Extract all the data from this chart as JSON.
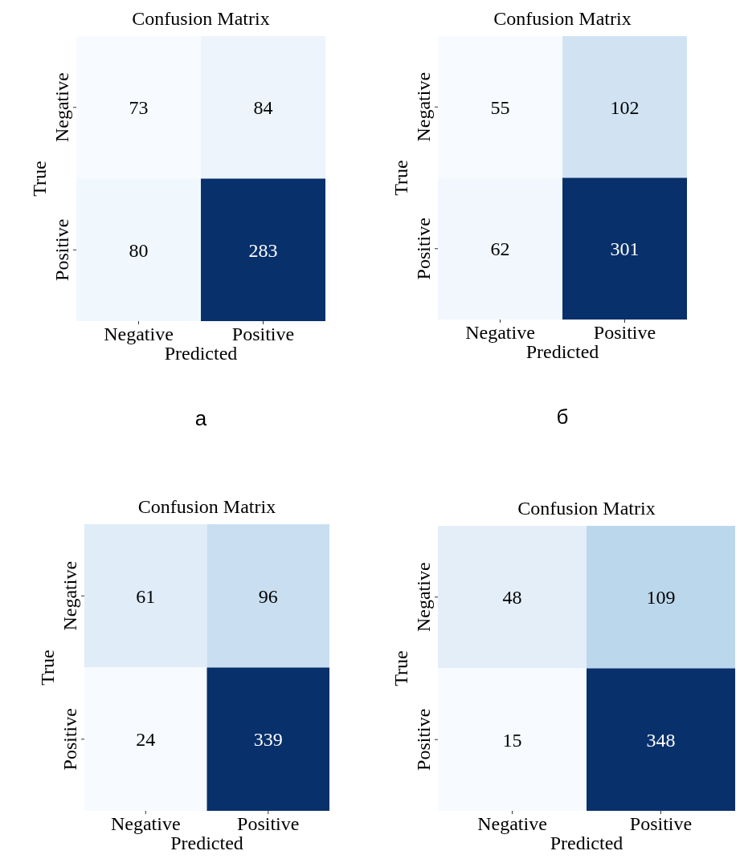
{
  "chart_data": [
    {
      "type": "heatmap",
      "title": "Confusion Matrix",
      "xlabel": "Predicted",
      "ylabel": "True",
      "categories": [
        "Negative",
        "Positive"
      ],
      "y_categories": [
        "Negative",
        "Positive"
      ],
      "cells": [
        [
          73,
          84
        ],
        [
          80,
          283
        ]
      ],
      "data_labels": true,
      "annotations": [
        "а"
      ]
    },
    {
      "type": "heatmap",
      "title": "Confusion Matrix",
      "xlabel": "Predicted",
      "ylabel": "True",
      "categories": [
        "Negative",
        "Positive"
      ],
      "y_categories": [
        "Negative",
        "Positive"
      ],
      "cells": [
        [
          55,
          102
        ],
        [
          62,
          301
        ]
      ],
      "data_labels": true,
      "annotations": [
        "б"
      ]
    },
    {
      "type": "heatmap",
      "title": "Confusion Matrix",
      "xlabel": "Predicted",
      "ylabel": "True",
      "categories": [
        "Negative",
        "Positive"
      ],
      "y_categories": [
        "Negative",
        "Positive"
      ],
      "cells": [
        [
          61,
          96
        ],
        [
          24,
          339
        ]
      ],
      "data_labels": true
    },
    {
      "type": "heatmap",
      "title": "Confusion Matrix",
      "xlabel": "Predicted",
      "ylabel": "True",
      "categories": [
        "Negative",
        "Positive"
      ],
      "y_categories": [
        "Negative",
        "Positive"
      ],
      "cells": [
        [
          48,
          109
        ],
        [
          15,
          348
        ]
      ],
      "data_labels": true
    }
  ]
}
